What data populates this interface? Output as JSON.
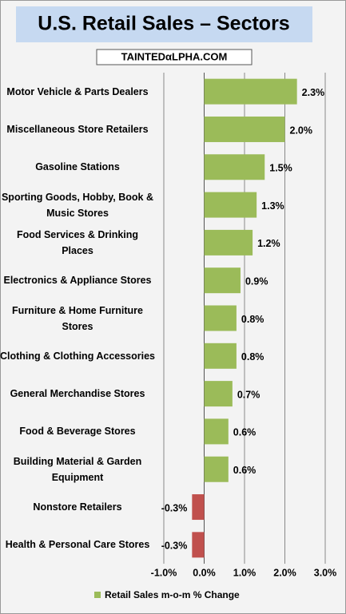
{
  "chart_data": {
    "type": "hbar",
    "title": "U.S. Retail Sales – Sectors",
    "subtitle": "TAINTEDαLPHA.COM",
    "categories": [
      "Motor Vehicle & Parts Dealers",
      "Miscellaneous Store Retailers",
      "Gasoline Stations",
      "Sporting Goods, Hobby, Book & Music Stores",
      "Food Services & Drinking Places",
      "Electronics & Appliance Stores",
      "Furniture & Home Furniture Stores",
      "Clothing & Clothing Accessories",
      "General Merchandise Stores",
      "Food & Beverage Stores",
      "Building Material & Garden Equipment",
      "Nonstore Retailers",
      "Health & Personal Care Stores"
    ],
    "series": [
      {
        "name": "Retail Sales m-o-m % Change",
        "color": "#9bbb59",
        "negative_color": "#c0504d",
        "values": [
          2.3,
          2.0,
          1.5,
          1.3,
          1.2,
          0.9,
          0.8,
          0.8,
          0.7,
          0.6,
          0.6,
          -0.3,
          -0.3
        ],
        "value_labels": [
          "2.3%",
          "2.0%",
          "1.5%",
          "1.3%",
          "1.2%",
          "0.9%",
          "0.8%",
          "0.8%",
          "0.7%",
          "0.6%",
          "0.6%",
          "-0.3%",
          "-0.3%"
        ]
      }
    ],
    "xlim": [
      -1,
      3
    ],
    "xticks": [
      {
        "value": -1,
        "label": "-1.0%"
      },
      {
        "value": 0,
        "label": "0.0%"
      },
      {
        "value": 1,
        "label": "1.0%"
      },
      {
        "value": 2,
        "label": "2.0%"
      },
      {
        "value": 3,
        "label": "3.0%"
      }
    ],
    "grid": true,
    "legend": "bottom"
  }
}
